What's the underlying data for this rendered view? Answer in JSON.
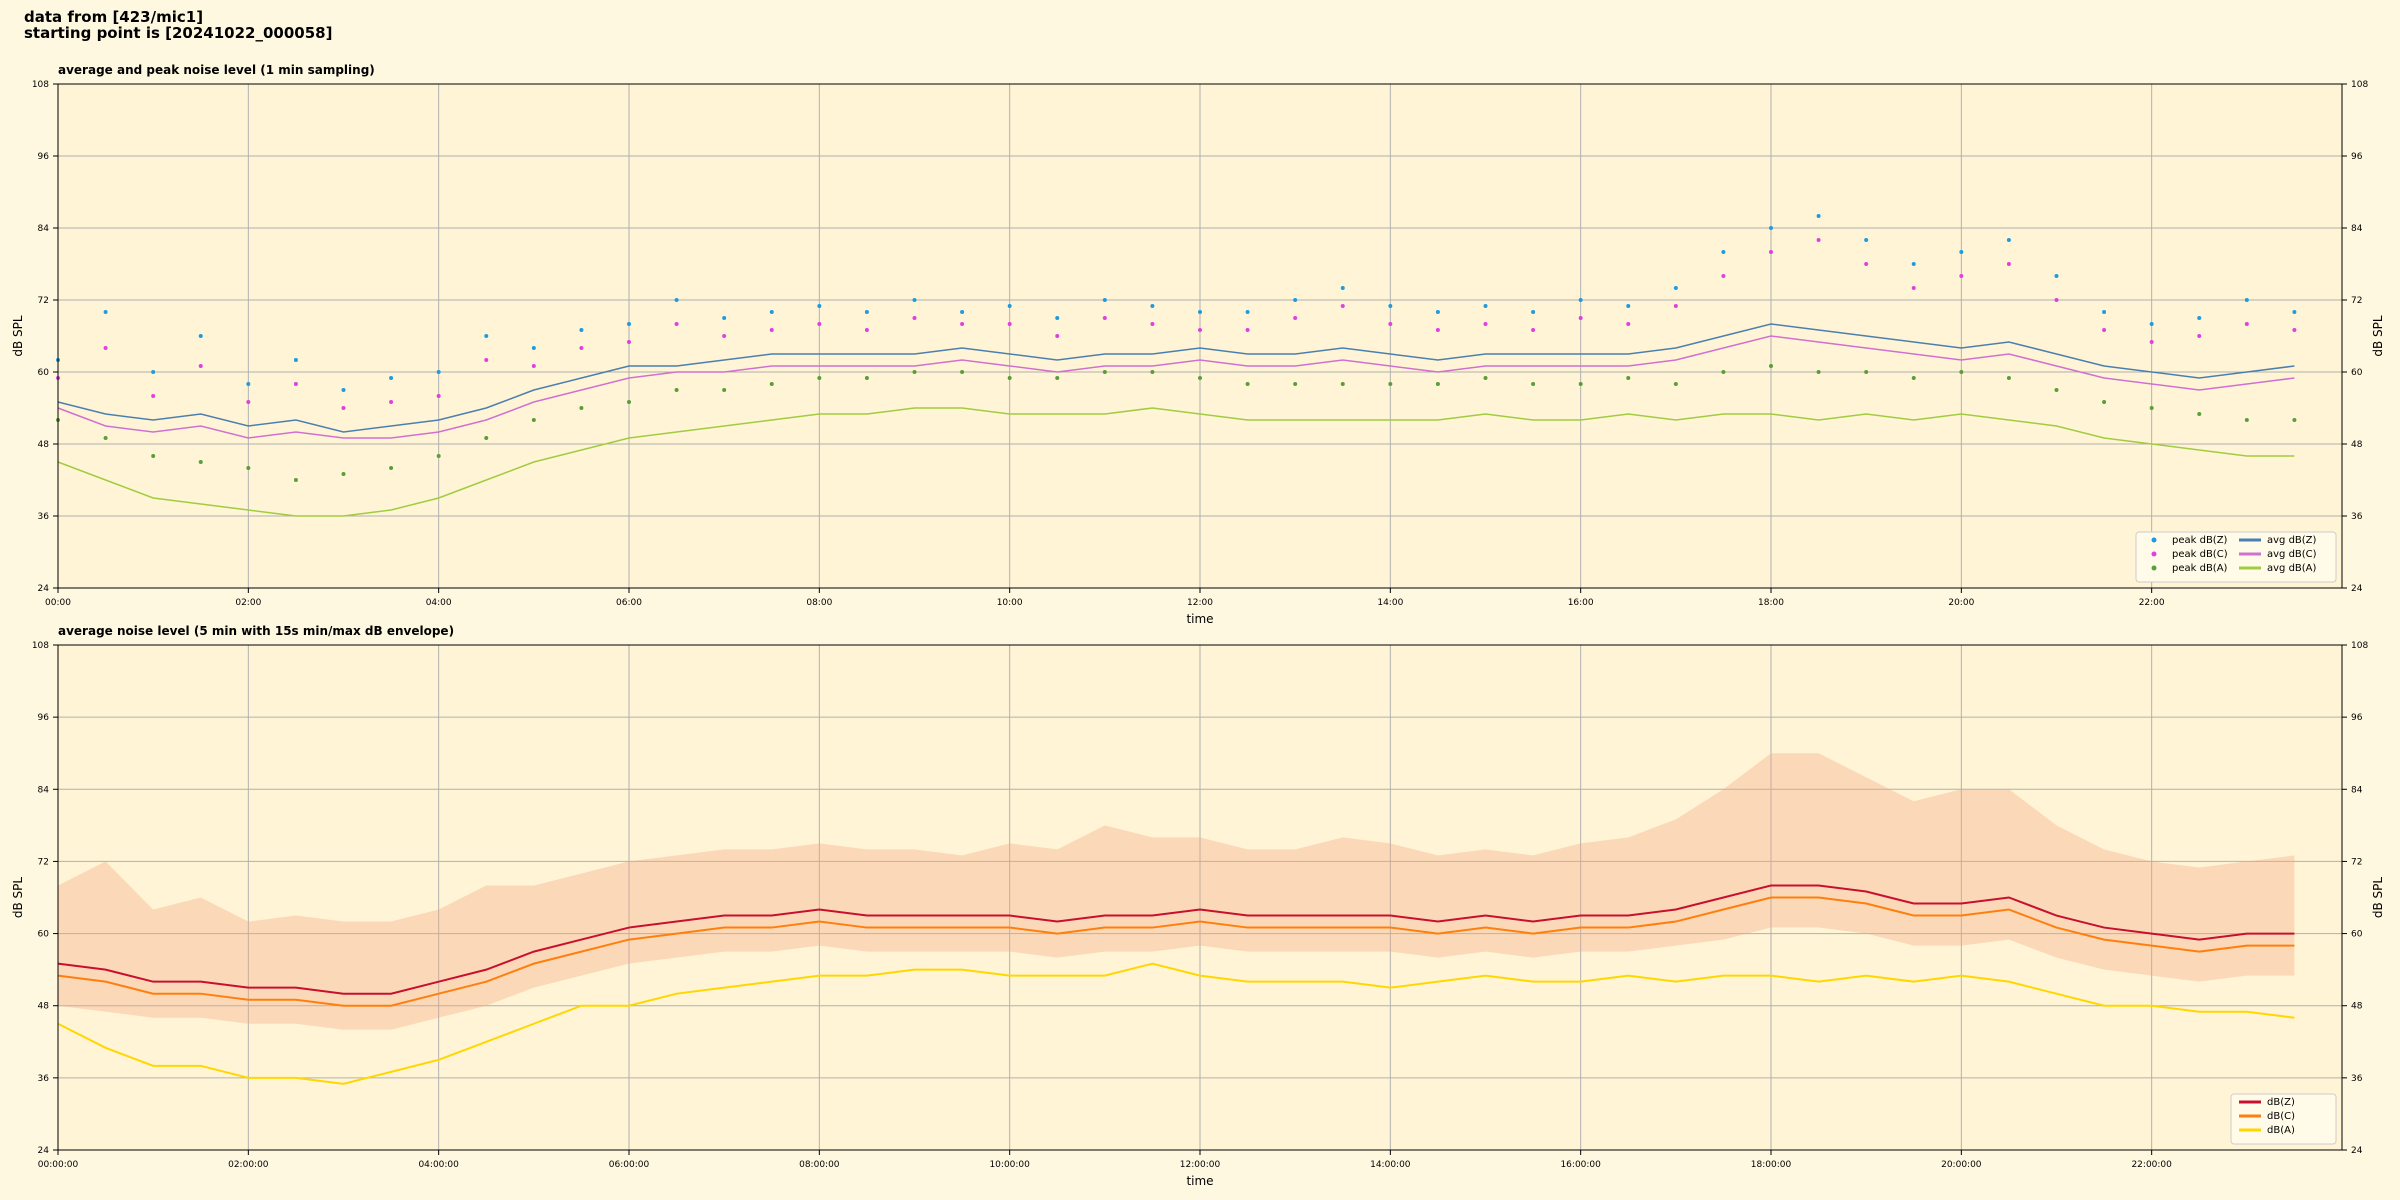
{
  "header": {
    "line1": "data from [423/mic1]",
    "line2": "starting point is [20241022_000058]"
  },
  "chart_data": [
    {
      "type": "line",
      "title": "average and peak noise level (1 min sampling)",
      "x_label": "time",
      "y_label": "dB SPL",
      "x": [
        "00:00",
        "00:30",
        "01:00",
        "01:30",
        "02:00",
        "02:30",
        "03:00",
        "03:30",
        "04:00",
        "04:30",
        "05:00",
        "05:30",
        "06:00",
        "06:30",
        "07:00",
        "07:30",
        "08:00",
        "08:30",
        "09:00",
        "09:30",
        "10:00",
        "10:30",
        "11:00",
        "11:30",
        "12:00",
        "12:30",
        "13:00",
        "13:30",
        "14:00",
        "14:30",
        "15:00",
        "15:30",
        "16:00",
        "16:30",
        "17:00",
        "17:30",
        "18:00",
        "18:30",
        "19:00",
        "19:30",
        "20:00",
        "20:30",
        "21:00",
        "21:30",
        "22:00",
        "22:30",
        "23:00",
        "23:30"
      ],
      "xlim": [
        "00:00",
        "24:00"
      ],
      "xticks": [
        "00:00",
        "02:00",
        "04:00",
        "06:00",
        "08:00",
        "10:00",
        "12:00",
        "14:00",
        "16:00",
        "18:00",
        "20:00",
        "22:00"
      ],
      "ylim": [
        24,
        108
      ],
      "yticks": [
        24,
        36,
        48,
        60,
        72,
        84,
        96,
        108
      ],
      "grid": true,
      "legend": "lower right",
      "series": [
        {
          "name": "peak dB(Z)",
          "style": "points",
          "color": "#1f9be0",
          "values": [
            62,
            70,
            60,
            66,
            58,
            62,
            57,
            59,
            60,
            66,
            64,
            67,
            68,
            72,
            69,
            70,
            71,
            70,
            72,
            70,
            71,
            69,
            72,
            71,
            70,
            70,
            72,
            74,
            71,
            70,
            71,
            70,
            72,
            71,
            74,
            80,
            84,
            86,
            82,
            78,
            80,
            82,
            76,
            70,
            68,
            69,
            72,
            70
          ]
        },
        {
          "name": "peak dB(C)",
          "style": "points",
          "color": "#e040e0",
          "values": [
            59,
            64,
            56,
            61,
            55,
            58,
            54,
            55,
            56,
            62,
            61,
            64,
            65,
            68,
            66,
            67,
            68,
            67,
            69,
            68,
            68,
            66,
            69,
            68,
            67,
            67,
            69,
            71,
            68,
            67,
            68,
            67,
            69,
            68,
            71,
            76,
            80,
            82,
            78,
            74,
            76,
            78,
            72,
            67,
            65,
            66,
            68,
            67
          ]
        },
        {
          "name": "peak dB(A)",
          "style": "points",
          "color": "#5a9e3a",
          "values": [
            52,
            49,
            46,
            45,
            44,
            42,
            43,
            44,
            46,
            49,
            52,
            54,
            55,
            57,
            57,
            58,
            59,
            59,
            60,
            60,
            59,
            59,
            60,
            60,
            59,
            58,
            58,
            58,
            58,
            58,
            59,
            58,
            58,
            59,
            58,
            60,
            61,
            60,
            60,
            59,
            60,
            59,
            57,
            55,
            54,
            53,
            52,
            52
          ]
        },
        {
          "name": "avg dB(Z)",
          "style": "line",
          "color": "#4a7fb0",
          "values": [
            55,
            53,
            52,
            53,
            51,
            52,
            50,
            51,
            52,
            54,
            57,
            59,
            61,
            61,
            62,
            63,
            63,
            63,
            63,
            64,
            63,
            62,
            63,
            63,
            64,
            63,
            63,
            64,
            63,
            62,
            63,
            63,
            63,
            63,
            64,
            66,
            68,
            67,
            66,
            65,
            64,
            65,
            63,
            61,
            60,
            59,
            60,
            61
          ]
        },
        {
          "name": "avg dB(C)",
          "style": "line",
          "color": "#d070d0",
          "values": [
            54,
            51,
            50,
            51,
            49,
            50,
            49,
            49,
            50,
            52,
            55,
            57,
            59,
            60,
            60,
            61,
            61,
            61,
            61,
            62,
            61,
            60,
            61,
            61,
            62,
            61,
            61,
            62,
            61,
            60,
            61,
            61,
            61,
            61,
            62,
            64,
            66,
            65,
            64,
            63,
            62,
            63,
            61,
            59,
            58,
            57,
            58,
            59
          ]
        },
        {
          "name": "avg dB(A)",
          "style": "line",
          "color": "#a0cc40",
          "values": [
            45,
            42,
            39,
            38,
            37,
            36,
            36,
            37,
            39,
            42,
            45,
            47,
            49,
            50,
            51,
            52,
            53,
            53,
            54,
            54,
            53,
            53,
            53,
            54,
            53,
            52,
            52,
            52,
            52,
            52,
            53,
            52,
            52,
            53,
            52,
            53,
            53,
            52,
            53,
            52,
            53,
            52,
            51,
            49,
            48,
            47,
            46,
            46
          ]
        }
      ]
    },
    {
      "type": "line",
      "title": "average noise level (5 min with 15s min/max dB envelope)",
      "x_label": "time",
      "y_label": "dB SPL",
      "x": [
        "00:00:00",
        "00:30:00",
        "01:00:00",
        "01:30:00",
        "02:00:00",
        "02:30:00",
        "03:00:00",
        "03:30:00",
        "04:00:00",
        "04:30:00",
        "05:00:00",
        "05:30:00",
        "06:00:00",
        "06:30:00",
        "07:00:00",
        "07:30:00",
        "08:00:00",
        "08:30:00",
        "09:00:00",
        "09:30:00",
        "10:00:00",
        "10:30:00",
        "11:00:00",
        "11:30:00",
        "12:00:00",
        "12:30:00",
        "13:00:00",
        "13:30:00",
        "14:00:00",
        "14:30:00",
        "15:00:00",
        "15:30:00",
        "16:00:00",
        "16:30:00",
        "17:00:00",
        "17:30:00",
        "18:00:00",
        "18:30:00",
        "19:00:00",
        "19:30:00",
        "20:00:00",
        "20:30:00",
        "21:00:00",
        "21:30:00",
        "22:00:00",
        "22:30:00",
        "23:00:00",
        "23:30:00"
      ],
      "xlim": [
        "00:00:00",
        "24:00:00"
      ],
      "xticks": [
        "00:00:00",
        "02:00:00",
        "04:00:00",
        "06:00:00",
        "08:00:00",
        "10:00:00",
        "12:00:00",
        "14:00:00",
        "16:00:00",
        "18:00:00",
        "20:00:00",
        "22:00:00"
      ],
      "ylim": [
        24,
        108
      ],
      "yticks": [
        24,
        36,
        48,
        60,
        72,
        84,
        96,
        108
      ],
      "grid": true,
      "legend": "lower right",
      "envelope_color": "#f4a582",
      "envelope_min": [
        48,
        47,
        46,
        46,
        45,
        45,
        44,
        44,
        46,
        48,
        51,
        53,
        55,
        56,
        57,
        57,
        58,
        57,
        57,
        57,
        57,
        56,
        57,
        57,
        58,
        57,
        57,
        57,
        57,
        56,
        57,
        56,
        57,
        57,
        58,
        59,
        61,
        61,
        60,
        58,
        58,
        59,
        56,
        54,
        53,
        52,
        53,
        53
      ],
      "envelope_max": [
        68,
        72,
        64,
        66,
        62,
        63,
        62,
        62,
        64,
        68,
        68,
        70,
        72,
        73,
        74,
        74,
        75,
        74,
        74,
        73,
        75,
        74,
        78,
        76,
        76,
        74,
        74,
        76,
        75,
        73,
        74,
        73,
        75,
        76,
        79,
        84,
        90,
        90,
        86,
        82,
        84,
        84,
        78,
        74,
        72,
        71,
        72,
        73
      ],
      "series": [
        {
          "name": "dB(Z)",
          "style": "line",
          "color": "#c8102e",
          "values": [
            55,
            54,
            52,
            52,
            51,
            51,
            50,
            50,
            52,
            54,
            57,
            59,
            61,
            62,
            63,
            63,
            64,
            63,
            63,
            63,
            63,
            62,
            63,
            63,
            64,
            63,
            63,
            63,
            63,
            62,
            63,
            62,
            63,
            63,
            64,
            66,
            68,
            68,
            67,
            65,
            65,
            66,
            63,
            61,
            60,
            59,
            60,
            60
          ]
        },
        {
          "name": "dB(C)",
          "style": "line",
          "color": "#ff7f0e",
          "values": [
            53,
            52,
            50,
            50,
            49,
            49,
            48,
            48,
            50,
            52,
            55,
            57,
            59,
            60,
            61,
            61,
            62,
            61,
            61,
            61,
            61,
            60,
            61,
            61,
            62,
            61,
            61,
            61,
            61,
            60,
            61,
            60,
            61,
            61,
            62,
            64,
            66,
            66,
            65,
            63,
            63,
            64,
            61,
            59,
            58,
            57,
            58,
            58
          ]
        },
        {
          "name": "dB(A)",
          "style": "line",
          "color": "#ffd700",
          "values": [
            45,
            41,
            38,
            38,
            36,
            36,
            35,
            37,
            39,
            42,
            45,
            48,
            48,
            50,
            51,
            52,
            53,
            53,
            54,
            54,
            53,
            53,
            53,
            55,
            53,
            52,
            52,
            52,
            51,
            52,
            53,
            52,
            52,
            53,
            52,
            53,
            53,
            52,
            53,
            52,
            53,
            52,
            50,
            48,
            48,
            47,
            47,
            46
          ]
        }
      ]
    }
  ]
}
